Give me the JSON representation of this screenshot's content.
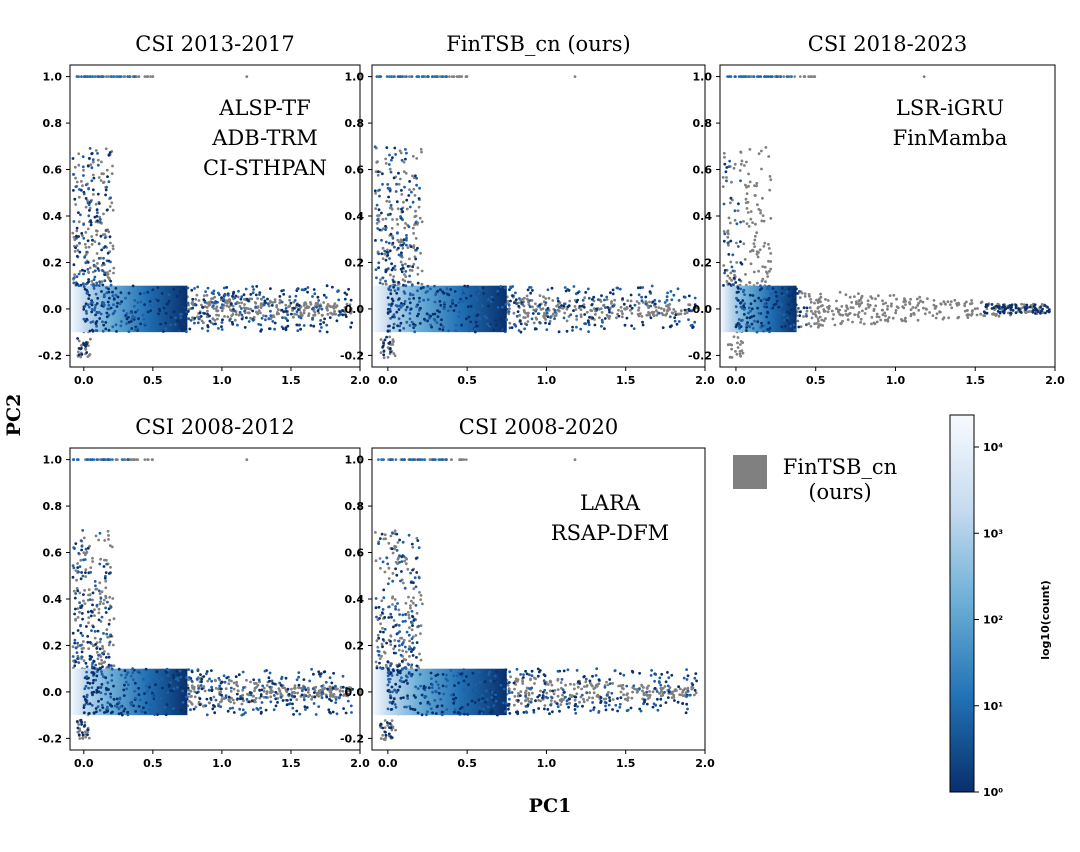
{
  "figure": {
    "xlabel": "PC1",
    "ylabel": "PC2",
    "colorbar": {
      "label": "log10(count)",
      "ticks": [
        "10⁰",
        "10¹",
        "10²",
        "10³",
        "10⁴"
      ],
      "scale": "log",
      "colors": [
        "#08306b",
        "#2171b5",
        "#6baed6",
        "#c6dbef",
        "#f7fbff"
      ]
    },
    "legend": {
      "label_line1": "FinTSB_cn",
      "label_line2": "(ours)",
      "color": "#808080"
    },
    "reference_color": "#808080"
  },
  "chart_data": [
    {
      "type": "scatter",
      "title": "CSI 2013-2017",
      "annotation": [
        "ALSP-TF",
        "ADB-TRM",
        "CI-STHPAN"
      ],
      "xlim": [
        -0.1,
        2.0
      ],
      "ylim": [
        -0.25,
        1.05
      ],
      "xticks": [
        0.0,
        0.5,
        1.0,
        1.5,
        2.0
      ],
      "yticks": [
        -0.2,
        0.0,
        0.2,
        0.4,
        0.6,
        0.8,
        1.0
      ],
      "xticklabels": [
        "0.0",
        "0.5",
        "1.0",
        "1.5",
        "2.0"
      ],
      "yticklabels": [
        "-0.2",
        "0.0",
        "0.2",
        "0.4",
        "0.6",
        "0.8",
        "1.0"
      ],
      "overlay": "blue"
    },
    {
      "type": "scatter",
      "title": "FinTSB_cn (ours)",
      "annotation": [],
      "xlim": [
        -0.1,
        2.0
      ],
      "ylim": [
        -0.25,
        1.05
      ],
      "xticks": [
        0.0,
        0.5,
        1.0,
        1.5,
        2.0
      ],
      "yticks": [
        -0.2,
        0.0,
        0.2,
        0.4,
        0.6,
        0.8,
        1.0
      ],
      "xticklabels": [
        "0.0",
        "0.5",
        "1.0",
        "1.5",
        "2.0"
      ],
      "yticklabels": [
        "-0.2",
        "0.0",
        "0.2",
        "0.4",
        "0.6",
        "0.8",
        "1.0"
      ],
      "overlay": "blue"
    },
    {
      "type": "scatter",
      "title": "CSI 2018-2023",
      "annotation": [
        "LSR-iGRU",
        "FinMamba"
      ],
      "xlim": [
        -0.1,
        2.0
      ],
      "ylim": [
        -0.25,
        1.05
      ],
      "xticks": [
        0.0,
        0.5,
        1.0,
        1.5,
        2.0
      ],
      "yticks": [
        -0.2,
        0.0,
        0.2,
        0.4,
        0.6,
        0.8,
        1.0
      ],
      "xticklabels": [
        "0.0",
        "0.5",
        "1.0",
        "1.5",
        "2.0"
      ],
      "yticklabels": [
        "-0.2",
        "0.0",
        "0.2",
        "0.4",
        "0.6",
        "0.8",
        "1.0"
      ],
      "overlay": "narrow"
    },
    {
      "type": "scatter",
      "title": "CSI 2008-2012",
      "annotation": [],
      "xlim": [
        -0.1,
        2.0
      ],
      "ylim": [
        -0.25,
        1.05
      ],
      "xticks": [
        0.0,
        0.5,
        1.0,
        1.5,
        2.0
      ],
      "yticks": [
        -0.2,
        0.0,
        0.2,
        0.4,
        0.6,
        0.8,
        1.0
      ],
      "xticklabels": [
        "0.0",
        "0.5",
        "1.0",
        "1.5",
        "2.0"
      ],
      "yticklabels": [
        "-0.2",
        "0.0",
        "0.2",
        "0.4",
        "0.6",
        "0.8",
        "1.0"
      ],
      "overlay": "blue"
    },
    {
      "type": "scatter",
      "title": "CSI 2008-2020",
      "annotation": [
        "LARA",
        "RSAP-DFM"
      ],
      "xlim": [
        -0.1,
        2.0
      ],
      "ylim": [
        -0.25,
        1.05
      ],
      "xticks": [
        0.0,
        0.5,
        1.0,
        1.5,
        2.0
      ],
      "yticks": [
        -0.2,
        0.0,
        0.2,
        0.4,
        0.6,
        0.8,
        1.0
      ],
      "xticklabels": [
        "0.0",
        "0.5",
        "1.0",
        "1.5",
        "2.0"
      ],
      "yticklabels": [
        "-0.2",
        "0.0",
        "0.2",
        "0.4",
        "0.6",
        "0.8",
        "1.0"
      ],
      "overlay": "blue"
    }
  ]
}
